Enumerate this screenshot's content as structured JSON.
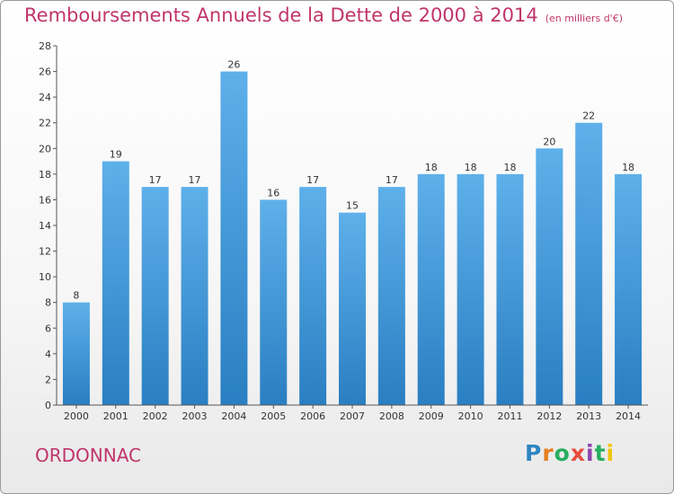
{
  "title": "Remboursements Annuels de la Dette de 2000 à 2014",
  "unit": "(en milliers d'€)",
  "commune": "ORDONNAC",
  "logo": {
    "text": "Proxiti",
    "letters": [
      {
        "ch": "P",
        "color": "#2e86c1"
      },
      {
        "ch": "r",
        "color": "#e67e22"
      },
      {
        "ch": "o",
        "color": "#27ae60"
      },
      {
        "ch": "x",
        "color": "#e74c3c"
      },
      {
        "ch": "i",
        "color": "#8e44ad"
      },
      {
        "ch": "t",
        "color": "#27ae60"
      },
      {
        "ch": "i",
        "color": "#f1c40f"
      }
    ]
  },
  "colors": {
    "title": "#c0356a",
    "bar_top": "#5eb0ea",
    "bar_bottom": "#2a7fc2",
    "axis": "#555555",
    "grid": "#cfcfcf"
  },
  "chart_data": {
    "type": "bar",
    "categories": [
      "2000",
      "2001",
      "2002",
      "2003",
      "2004",
      "2005",
      "2006",
      "2007",
      "2008",
      "2009",
      "2010",
      "2011",
      "2012",
      "2013",
      "2014"
    ],
    "values": [
      8,
      19,
      17,
      17,
      26,
      16,
      17,
      15,
      17,
      18,
      18,
      18,
      20,
      22,
      18
    ],
    "ylim": [
      0,
      28
    ],
    "yticks": [
      0,
      2,
      4,
      6,
      8,
      10,
      12,
      14,
      16,
      18,
      20,
      22,
      24,
      26,
      28
    ],
    "grid": false,
    "legend": "none",
    "data_labels": true
  }
}
